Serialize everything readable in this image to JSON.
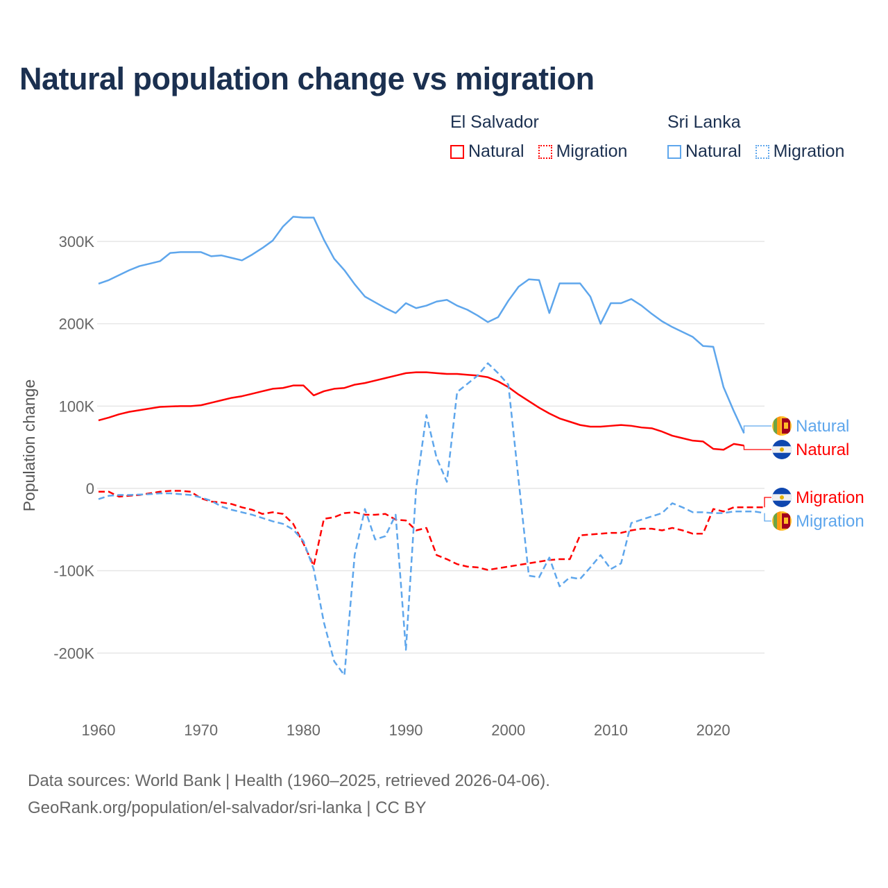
{
  "title": "Natural population change vs migration",
  "legend": {
    "groups": [
      {
        "country": "El Salvador",
        "items": [
          {
            "label": "Natural",
            "style": "solid",
            "color": "#ff0000"
          },
          {
            "label": "Migration",
            "style": "dotted",
            "color": "#ff0000"
          }
        ]
      },
      {
        "country": "Sri Lanka",
        "items": [
          {
            "label": "Natural",
            "style": "solid",
            "color": "#5ea6ec"
          },
          {
            "label": "Migration",
            "style": "dotted",
            "color": "#5ea6ec"
          }
        ]
      }
    ]
  },
  "footer": {
    "line1": "Data sources: World Bank | Health (1960–2025, retrieved 2026-04-06).",
    "line2": "GeoRank.org/population/el-salvador/sri-lanka | CC BY"
  },
  "chart_data": {
    "type": "line",
    "title": "Natural population change vs migration",
    "xlabel": "",
    "ylabel": "Population change",
    "xlim": [
      1960,
      2025
    ],
    "ylim": [
      -258000,
      348000
    ],
    "grid": true,
    "x_ticks": [
      1960,
      1970,
      1980,
      1990,
      2000,
      2010,
      2020
    ],
    "x_tick_labels": [
      "1960",
      "1970",
      "1980",
      "1990",
      "2000",
      "2010",
      "2020"
    ],
    "y_ticks": [
      -200000,
      -100000,
      0,
      100000,
      200000,
      300000
    ],
    "y_tick_labels": [
      "-200K",
      "-100K",
      "0",
      "100K",
      "200K",
      "300K"
    ],
    "legend_position": "top-right",
    "series": [
      {
        "name": "Sri Lanka Natural",
        "country": "Sri Lanka",
        "end_label": "Natural",
        "color": "#5ea6ec",
        "dash": "solid",
        "flag": "sri-lanka",
        "start": 1960,
        "values": [
          248600,
          253000,
          259000,
          265000,
          270000,
          273000,
          276000,
          286000,
          287000,
          287000,
          287000,
          282000,
          283000,
          280000,
          277000,
          284000,
          292000,
          301000,
          318000,
          330000,
          329000,
          329000,
          302000,
          279000,
          265000,
          248000,
          233000,
          226000,
          219000,
          213000,
          225000,
          219000,
          222000,
          227000,
          229000,
          222000,
          217000,
          210000,
          202000,
          208000,
          228000,
          245000,
          254000,
          253000,
          213000,
          249000,
          249000,
          249000,
          233000,
          200000,
          225000,
          225000,
          230000,
          222000,
          212000,
          203000,
          196000,
          190000,
          184000,
          173000,
          172000,
          123000,
          94000,
          67000
        ]
      },
      {
        "name": "El Salvador Natural",
        "country": "El Salvador",
        "end_label": "Natural",
        "color": "#ff0000",
        "dash": "solid",
        "flag": "el-salvador",
        "start": 1960,
        "values": [
          82600,
          86000,
          90000,
          93000,
          95000,
          97000,
          99000,
          99500,
          100000,
          100000,
          101000,
          104000,
          107000,
          110000,
          112000,
          115000,
          118000,
          121000,
          122000,
          125000,
          125000,
          113000,
          118000,
          121000,
          122000,
          126000,
          128000,
          131000,
          134000,
          137000,
          140000,
          141000,
          141000,
          140000,
          139000,
          139000,
          138000,
          137000,
          135000,
          130000,
          123000,
          114000,
          106000,
          98000,
          91000,
          85000,
          81000,
          77000,
          75000,
          75000,
          76000,
          77000,
          76000,
          74000,
          73000,
          69000,
          64000,
          61000,
          58000,
          57000,
          48000,
          47000,
          54000,
          52000
        ]
      },
      {
        "name": "El Salvador Migration",
        "country": "El Salvador",
        "end_label": "Migration",
        "color": "#ff0000",
        "dash": "dashed",
        "flag": "el-salvador",
        "start": 1960,
        "values": [
          -4000,
          -4000,
          -10000,
          -9000,
          -8000,
          -6000,
          -4000,
          -3000,
          -3000,
          -4000,
          -12000,
          -16000,
          -17000,
          -19000,
          -23000,
          -26000,
          -31000,
          -29000,
          -31000,
          -43000,
          -67000,
          -94000,
          -37000,
          -35000,
          -30000,
          -29000,
          -32000,
          -32000,
          -31000,
          -38000,
          -39000,
          -51000,
          -48000,
          -81000,
          -86000,
          -92000,
          -95000,
          -96000,
          -99000,
          -97000,
          -95000,
          -93000,
          -91000,
          -89000,
          -87000,
          -86000,
          -86000,
          -57000,
          -56000,
          -55000,
          -54000,
          -54000,
          -51000,
          -49000,
          -49000,
          -51000,
          -48000,
          -51000,
          -55000,
          -55000,
          -25000,
          -28000,
          -23000,
          -23000,
          -23000,
          -23000
        ]
      },
      {
        "name": "Sri Lanka Migration",
        "country": "Sri Lanka",
        "end_label": "Migration",
        "color": "#5ea6ec",
        "dash": "dashed",
        "flag": "sri-lanka",
        "start": 1960,
        "values": [
          -13000,
          -9000,
          -8000,
          -8000,
          -7500,
          -7000,
          -6000,
          -6000,
          -7000,
          -8000,
          -11000,
          -15000,
          -22000,
          -26000,
          -29000,
          -32000,
          -36000,
          -40000,
          -43000,
          -50000,
          -64000,
          -98000,
          -163000,
          -210000,
          -227000,
          -81000,
          -25000,
          -62000,
          -58000,
          -32000,
          -196000,
          0,
          89000,
          37000,
          8000,
          117000,
          127000,
          137000,
          152000,
          140000,
          126000,
          10000,
          -106000,
          -108000,
          -84000,
          -119000,
          -108000,
          -110000,
          -96000,
          -81000,
          -98000,
          -91000,
          -42000,
          -38000,
          -34000,
          -30000,
          -18000,
          -23000,
          -29000,
          -29000,
          -30000,
          -30000,
          -28000,
          -28000,
          -28000,
          -30000
        ]
      }
    ]
  }
}
